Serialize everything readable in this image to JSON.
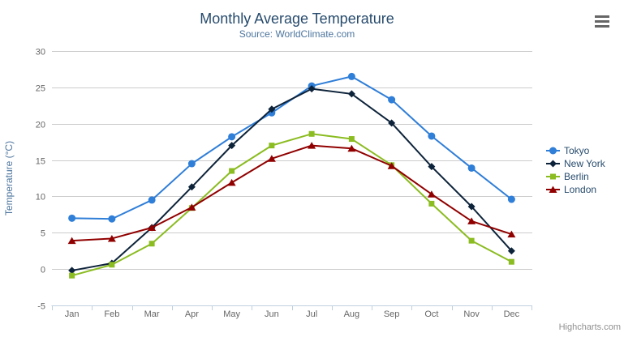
{
  "chart_data": {
    "type": "line",
    "title": "Monthly Average Temperature",
    "subtitle": "Source: WorldClimate.com",
    "categories": [
      "Jan",
      "Feb",
      "Mar",
      "Apr",
      "May",
      "Jun",
      "Jul",
      "Aug",
      "Sep",
      "Oct",
      "Nov",
      "Dec"
    ],
    "xlabel": "",
    "ylabel": "Temperature (°C)",
    "ylim": [
      -5,
      30
    ],
    "ytick_interval": 5,
    "grid": true,
    "legend_position": "right",
    "series": [
      {
        "name": "Tokyo",
        "color": "#2f7ed8",
        "marker": "circle",
        "values": [
          7.0,
          6.9,
          9.5,
          14.5,
          18.2,
          21.5,
          25.2,
          26.5,
          23.3,
          18.3,
          13.9,
          9.6
        ]
      },
      {
        "name": "New York",
        "color": "#0d233a",
        "marker": "diamond",
        "values": [
          -0.2,
          0.8,
          5.7,
          11.3,
          17.0,
          22.0,
          24.8,
          24.1,
          20.1,
          14.1,
          8.6,
          2.5
        ]
      },
      {
        "name": "Berlin",
        "color": "#8bbc21",
        "marker": "square",
        "values": [
          -0.9,
          0.6,
          3.5,
          8.4,
          13.5,
          17.0,
          18.6,
          17.9,
          14.3,
          9.0,
          3.9,
          1.0
        ]
      },
      {
        "name": "London",
        "color": "#910000",
        "marker": "triangle",
        "values": [
          3.9,
          4.2,
          5.7,
          8.5,
          11.9,
          15.2,
          17.0,
          16.6,
          14.2,
          10.3,
          6.6,
          4.8
        ]
      }
    ]
  },
  "credits": {
    "text": "Highcharts.com"
  },
  "export_menu": {
    "icon": "hamburger-icon"
  },
  "colors": {
    "title": "#274b6d",
    "subtitle": "#4d759e",
    "yaxis_title": "#4d759e",
    "axis_labels": "#666666",
    "axis_line": "#c0d0e0",
    "tick": "#c0d0e0",
    "grid": "#cccccc",
    "legend_text": "#274b6d",
    "credits_text": "#909090"
  }
}
